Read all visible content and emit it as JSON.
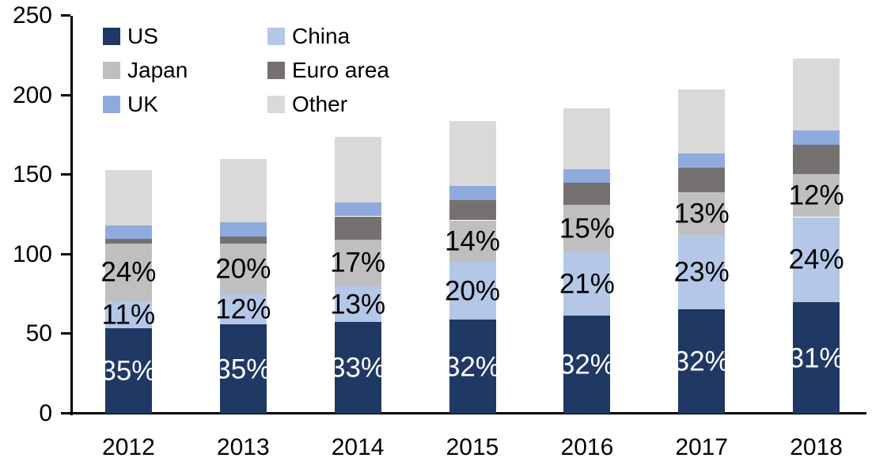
{
  "chart_data": {
    "type": "bar",
    "stacked": true,
    "title": "",
    "xlabel": "",
    "ylabel": "",
    "categories": [
      "2012",
      "2013",
      "2014",
      "2015",
      "2016",
      "2017",
      "2018"
    ],
    "series": [
      {
        "name": "US",
        "color": "#1F3864",
        "values": [
          53.5,
          56.0,
          57.5,
          59.0,
          61.5,
          65.5,
          70.0
        ],
        "labels": [
          "35%",
          "35%",
          "33%",
          "32%",
          "32%",
          "32%",
          "31%"
        ],
        "label_color": "#FFFFFF"
      },
      {
        "name": "China",
        "color": "#B4C7E7",
        "values": [
          17.0,
          19.0,
          22.5,
          36.5,
          40.5,
          47.0,
          53.5
        ],
        "labels": [
          "11%",
          "12%",
          "13%",
          "20%",
          "21%",
          "23%",
          "24%"
        ],
        "label_color": "#000000"
      },
      {
        "name": "Japan",
        "color": "#BFBFBF",
        "values": [
          36.5,
          32.0,
          29.5,
          26.0,
          29.0,
          26.5,
          27.0
        ],
        "labels": [
          "24%",
          "20%",
          "17%",
          "14%",
          "15%",
          "13%",
          "12%"
        ],
        "label_color": "#000000"
      },
      {
        "name": "Euro area",
        "color": "#767171",
        "values": [
          3.0,
          4.5,
          14.5,
          12.5,
          14.0,
          15.5,
          18.5
        ],
        "labels": null,
        "label_color": "#000000"
      },
      {
        "name": "UK",
        "color": "#8FAADC",
        "values": [
          8.5,
          9.0,
          8.5,
          9.0,
          8.5,
          9.0,
          9.0
        ],
        "labels": null,
        "label_color": "#000000"
      },
      {
        "name": "Other",
        "color": "#D9D9D9",
        "values": [
          34.5,
          39.5,
          41.5,
          41.0,
          38.5,
          40.5,
          45.0
        ],
        "labels": null,
        "label_color": "#000000"
      }
    ],
    "totals": [
      153,
      160,
      174,
      184,
      192,
      204,
      223
    ],
    "ylim": [
      0,
      250
    ],
    "yticks": [
      0,
      50,
      100,
      150,
      200,
      250
    ],
    "grid": false,
    "legend": {
      "position": "top-left",
      "columns": 2,
      "order": [
        "US",
        "China",
        "Japan",
        "Euro area",
        "UK",
        "Other"
      ]
    },
    "axis_color": "#000000"
  }
}
